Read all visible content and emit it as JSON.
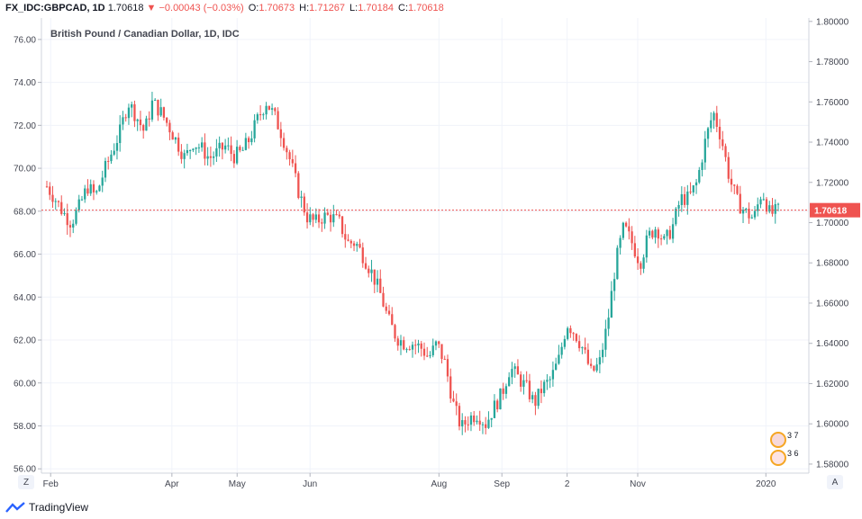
{
  "header": {
    "symbol": "FX_IDC:GBPCAD, 1D",
    "last": "1.70618",
    "arrow": "▼",
    "change": "−0.00043 (−0.03%)",
    "o_label": "O:",
    "o_value": "1.70673",
    "h_label": "H:",
    "h_value": "1.71267",
    "l_label": "L:",
    "l_value": "1.70184",
    "c_label": "C:",
    "c_value": "1.70618"
  },
  "brand": {
    "name": "TradingView"
  },
  "buttons": {
    "z": "Z",
    "a": "A"
  },
  "events": [
    {
      "num": "3 7"
    },
    {
      "num": "3 6"
    }
  ],
  "chart_data": {
    "type": "candlestick",
    "title": "British Pound / Canadian Dollar, 1D, IDC",
    "left_axis": {
      "ticks": [
        "76.00",
        "74.00",
        "72.00",
        "70.00",
        "68.00",
        "66.00",
        "64.00",
        "62.00",
        "60.00",
        "58.00",
        "56.00"
      ],
      "range": [
        55.8,
        77.0
      ]
    },
    "right_axis": {
      "ticks": [
        "1.80000",
        "1.78000",
        "1.76000",
        "1.74000",
        "1.72000",
        "1.70000",
        "1.68000",
        "1.66000",
        "1.64000",
        "1.62000",
        "1.60000",
        "1.58000"
      ],
      "range": [
        1.5755,
        1.8017
      ]
    },
    "x_ticks": [
      "Feb",
      "Apr",
      "May",
      "Jun",
      "Aug",
      "Sep",
      "2",
      "Nov",
      "2020"
    ],
    "last_price": 1.70618,
    "last_price_label": "1.70618",
    "colors": {
      "up": "#26a69a",
      "down": "#ef5350",
      "grid": "#f0f3fa",
      "axis_text": "#434651"
    },
    "close_path": [
      [
        0,
        1.718
      ],
      [
        4,
        1.712
      ],
      [
        8,
        1.705
      ],
      [
        12,
        1.7
      ],
      [
        16,
        1.708
      ],
      [
        20,
        1.718
      ],
      [
        24,
        1.713
      ],
      [
        28,
        1.725
      ],
      [
        32,
        1.735
      ],
      [
        36,
        1.745
      ],
      [
        40,
        1.76
      ],
      [
        44,
        1.753
      ],
      [
        48,
        1.745
      ],
      [
        52,
        1.76
      ],
      [
        56,
        1.755
      ],
      [
        60,
        1.748
      ],
      [
        64,
        1.74
      ],
      [
        68,
        1.732
      ],
      [
        72,
        1.74
      ],
      [
        76,
        1.737
      ],
      [
        80,
        1.732
      ],
      [
        84,
        1.735
      ],
      [
        88,
        1.738
      ],
      [
        92,
        1.733
      ],
      [
        96,
        1.735
      ],
      [
        100,
        1.742
      ],
      [
        104,
        1.752
      ],
      [
        108,
        1.76
      ],
      [
        112,
        1.753
      ],
      [
        116,
        1.743
      ],
      [
        120,
        1.73
      ],
      [
        124,
        1.715
      ],
      [
        128,
        1.703
      ],
      [
        132,
        1.7
      ],
      [
        136,
        1.703
      ],
      [
        140,
        1.703
      ],
      [
        144,
        1.7
      ],
      [
        148,
        1.69
      ],
      [
        152,
        1.69
      ],
      [
        156,
        1.683
      ],
      [
        160,
        1.675
      ],
      [
        164,
        1.665
      ],
      [
        168,
        1.652
      ],
      [
        172,
        1.643
      ],
      [
        176,
        1.64
      ],
      [
        180,
        1.64
      ],
      [
        184,
        1.638
      ],
      [
        188,
        1.633
      ],
      [
        192,
        1.64
      ],
      [
        196,
        1.63
      ],
      [
        200,
        1.61
      ],
      [
        204,
        1.598
      ],
      [
        208,
        1.603
      ],
      [
        212,
        1.605
      ],
      [
        216,
        1.6
      ],
      [
        220,
        1.608
      ],
      [
        224,
        1.615
      ],
      [
        228,
        1.628
      ],
      [
        232,
        1.623
      ],
      [
        236,
        1.618
      ],
      [
        240,
        1.61
      ],
      [
        244,
        1.618
      ],
      [
        248,
        1.622
      ],
      [
        252,
        1.632
      ],
      [
        256,
        1.65
      ],
      [
        260,
        1.645
      ],
      [
        264,
        1.637
      ],
      [
        268,
        1.625
      ],
      [
        272,
        1.63
      ],
      [
        276,
        1.65
      ],
      [
        280,
        1.68
      ],
      [
        284,
        1.698
      ],
      [
        288,
        1.69
      ],
      [
        292,
        1.68
      ],
      [
        296,
        1.693
      ],
      [
        300,
        1.698
      ],
      [
        304,
        1.69
      ],
      [
        308,
        1.698
      ],
      [
        312,
        1.712
      ],
      [
        316,
        1.712
      ],
      [
        320,
        1.72
      ],
      [
        324,
        1.74
      ],
      [
        328,
        1.755
      ],
      [
        332,
        1.742
      ],
      [
        336,
        1.722
      ],
      [
        340,
        1.71
      ],
      [
        344,
        1.705
      ],
      [
        348,
        1.702
      ],
      [
        352,
        1.716
      ],
      [
        356,
        1.704
      ],
      [
        360,
        1.706
      ]
    ],
    "data_range": [
      0,
      360
    ]
  }
}
